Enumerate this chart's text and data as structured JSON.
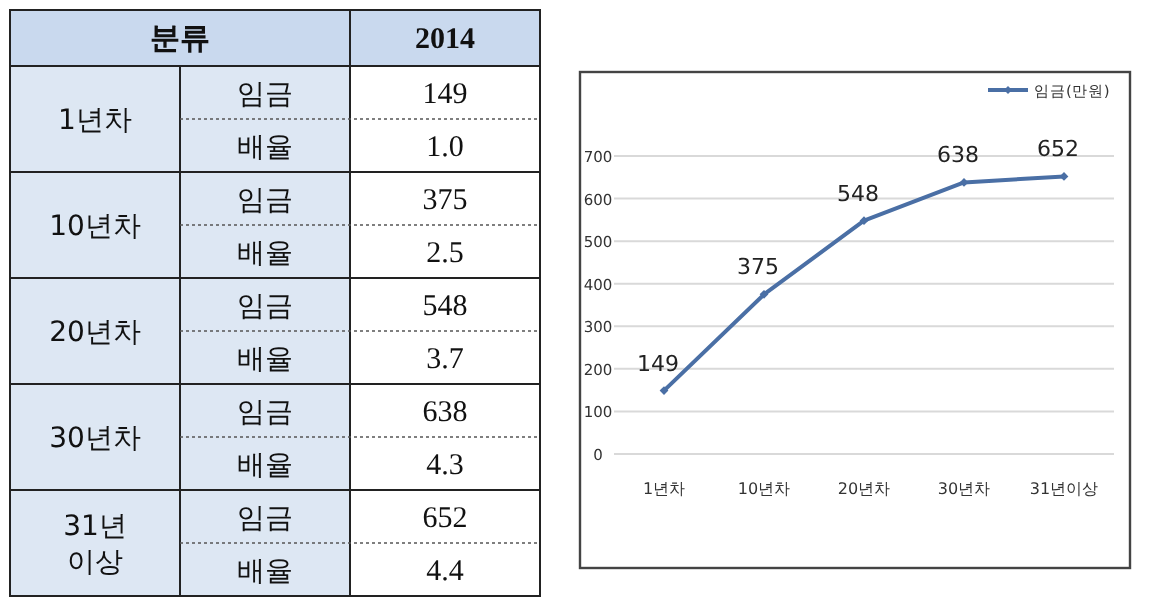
{
  "chart_data": [
    {
      "type": "other",
      "title": "분류",
      "subtitle": "2014",
      "categories": [
        "1년차",
        "10년차",
        "20년차",
        "30년차",
        "31년 이상"
      ],
      "series": [
        {
          "name": "임금",
          "values": [
            149,
            375,
            548,
            638,
            652
          ]
        },
        {
          "name": "배율",
          "values": [
            1.0,
            2.5,
            3.7,
            4.3,
            4.4
          ],
          "value_labels": [
            "1.0",
            "2.5",
            "3.7",
            "4.3",
            "4.4"
          ]
        }
      ],
      "data_labels": true
    },
    {
      "type": "line",
      "categories": [
        "1년차",
        "10년차",
        "20년차",
        "30년차",
        "31년이상"
      ],
      "series": [
        {
          "name": "임금(만원)",
          "color": "#4a6fa5",
          "values": [
            149,
            375,
            548,
            638,
            652
          ]
        }
      ],
      "ylim": [
        0,
        700
      ],
      "yticks": [
        0,
        100,
        200,
        300,
        400,
        500,
        600,
        700
      ],
      "grid": "y",
      "legend": "top right",
      "marker": "diamond",
      "data_labels": true
    }
  ]
}
